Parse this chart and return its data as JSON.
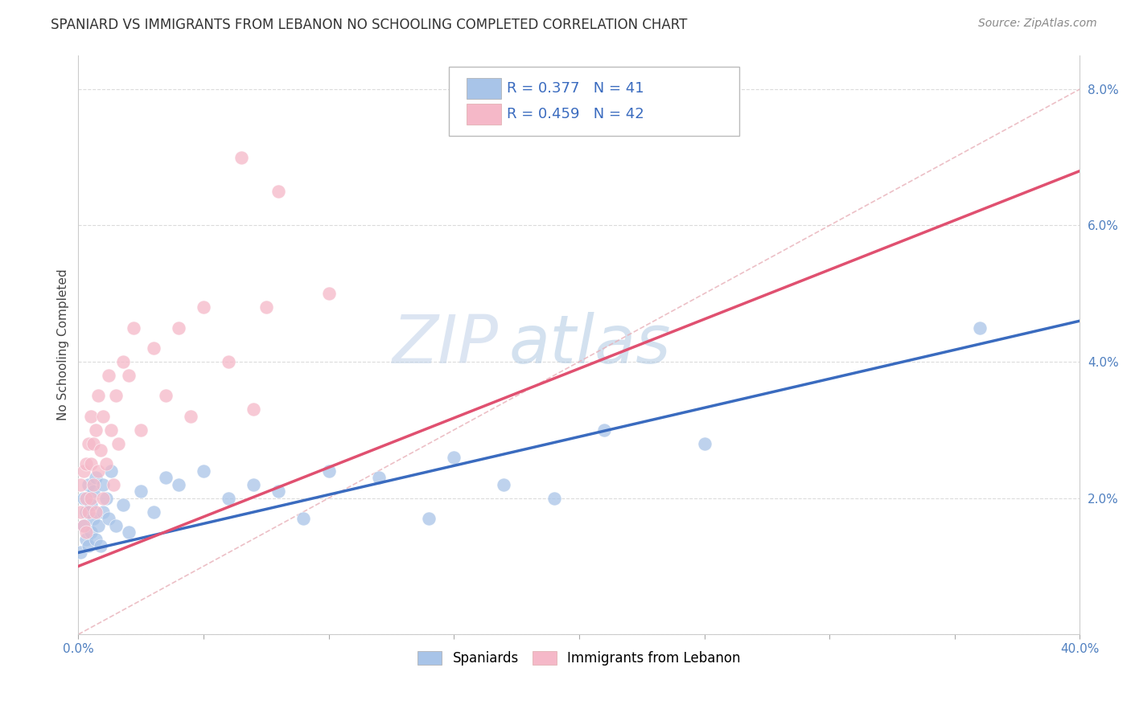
{
  "title": "SPANIARD VS IMMIGRANTS FROM LEBANON NO SCHOOLING COMPLETED CORRELATION CHART",
  "source_text": "Source: ZipAtlas.com",
  "ylabel": "No Schooling Completed",
  "xlim": [
    0.0,
    0.4
  ],
  "ylim": [
    0.0,
    0.085
  ],
  "xticks": [
    0.0,
    0.05,
    0.1,
    0.15,
    0.2,
    0.25,
    0.3,
    0.35,
    0.4
  ],
  "xticklabels": [
    "0.0%",
    "",
    "",
    "",
    "",
    "",
    "",
    "",
    "40.0%"
  ],
  "yticks": [
    0.0,
    0.02,
    0.04,
    0.06,
    0.08
  ],
  "yticklabels": [
    "",
    "2.0%",
    "4.0%",
    "6.0%",
    "8.0%"
  ],
  "r_blue": 0.377,
  "n_blue": 41,
  "r_pink": 0.459,
  "n_pink": 42,
  "blue_color": "#a8c4e8",
  "pink_color": "#f5b8c8",
  "blue_line_color": "#3a6bbf",
  "pink_line_color": "#e05070",
  "dashed_line_color": "#d0a0a0",
  "grid_color": "#d8d8d8",
  "spaniards_x": [
    0.001,
    0.002,
    0.002,
    0.003,
    0.003,
    0.004,
    0.004,
    0.005,
    0.005,
    0.006,
    0.006,
    0.007,
    0.007,
    0.008,
    0.009,
    0.01,
    0.01,
    0.011,
    0.012,
    0.013,
    0.015,
    0.018,
    0.02,
    0.025,
    0.03,
    0.035,
    0.04,
    0.05,
    0.06,
    0.07,
    0.08,
    0.09,
    0.1,
    0.12,
    0.14,
    0.15,
    0.17,
    0.19,
    0.21,
    0.25,
    0.36
  ],
  "spaniards_y": [
    0.012,
    0.016,
    0.02,
    0.014,
    0.018,
    0.013,
    0.022,
    0.015,
    0.019,
    0.017,
    0.021,
    0.014,
    0.023,
    0.016,
    0.013,
    0.018,
    0.022,
    0.02,
    0.017,
    0.024,
    0.016,
    0.019,
    0.015,
    0.021,
    0.018,
    0.023,
    0.022,
    0.024,
    0.02,
    0.022,
    0.021,
    0.017,
    0.024,
    0.023,
    0.017,
    0.026,
    0.022,
    0.02,
    0.03,
    0.028,
    0.045
  ],
  "lebanon_x": [
    0.001,
    0.001,
    0.002,
    0.002,
    0.003,
    0.003,
    0.003,
    0.004,
    0.004,
    0.005,
    0.005,
    0.005,
    0.006,
    0.006,
    0.007,
    0.007,
    0.008,
    0.008,
    0.009,
    0.01,
    0.01,
    0.011,
    0.012,
    0.013,
    0.014,
    0.015,
    0.016,
    0.018,
    0.02,
    0.022,
    0.025,
    0.03,
    0.035,
    0.04,
    0.045,
    0.05,
    0.06,
    0.065,
    0.07,
    0.075,
    0.08,
    0.1
  ],
  "lebanon_y": [
    0.018,
    0.022,
    0.016,
    0.024,
    0.015,
    0.02,
    0.025,
    0.018,
    0.028,
    0.02,
    0.025,
    0.032,
    0.022,
    0.028,
    0.018,
    0.03,
    0.024,
    0.035,
    0.027,
    0.02,
    0.032,
    0.025,
    0.038,
    0.03,
    0.022,
    0.035,
    0.028,
    0.04,
    0.038,
    0.045,
    0.03,
    0.042,
    0.035,
    0.045,
    0.032,
    0.048,
    0.04,
    0.07,
    0.033,
    0.048,
    0.065,
    0.05
  ],
  "title_fontsize": 12,
  "axis_label_fontsize": 11,
  "tick_fontsize": 11,
  "source_fontsize": 10,
  "blue_line_intercept": 0.012,
  "blue_line_slope": 0.085,
  "pink_line_intercept": 0.01,
  "pink_line_slope": 0.145
}
